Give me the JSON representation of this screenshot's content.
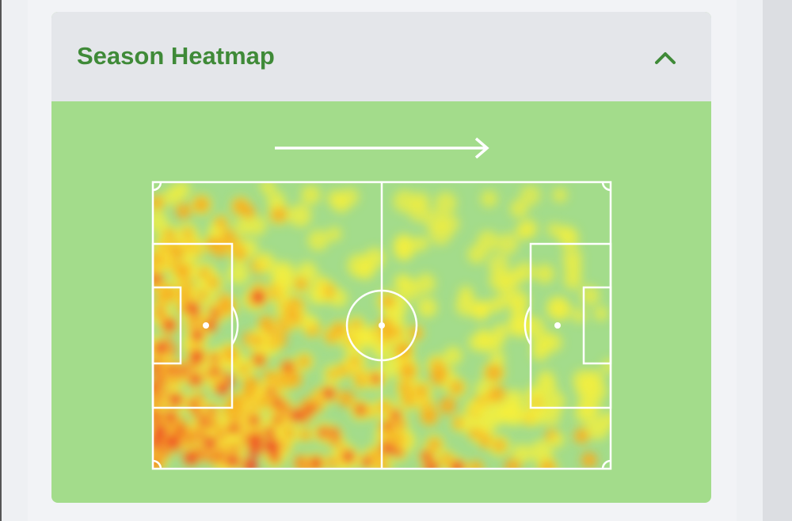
{
  "header": {
    "title": "Season Heatmap"
  }
}
